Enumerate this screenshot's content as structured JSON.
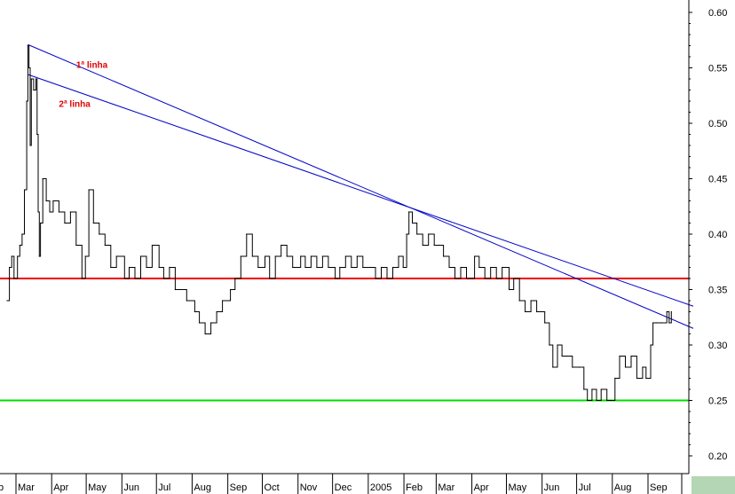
{
  "chart_data": {
    "type": "line",
    "title": "",
    "xlabel": "",
    "ylabel": "",
    "ylim": [
      0.19,
      0.61
    ],
    "y_ticks": [
      "0.20",
      "0.25",
      "0.30",
      "0.35",
      "0.40",
      "0.45",
      "0.50",
      "0.55",
      "0.60"
    ],
    "x_ticks": [
      "Mar",
      "Apr",
      "May",
      "Jun",
      "Jul",
      "Aug",
      "Sep",
      "Oct",
      "Nov",
      "Dec",
      "2005",
      "Feb",
      "Mar",
      "Apr",
      "May",
      "Jun",
      "Jul",
      "Aug",
      "Sep"
    ],
    "x_start_partial_label": "b",
    "y_axis_position": "right",
    "grid": false,
    "series": [
      {
        "color": "#000000",
        "values": [
          [
            "2004-02-20",
            0.34
          ],
          [
            "2004-02-22",
            0.37
          ],
          [
            "2004-02-24",
            0.38
          ],
          [
            "2004-02-26",
            0.36
          ],
          [
            "2004-02-29",
            0.38
          ],
          [
            "2004-03-02",
            0.39
          ],
          [
            "2004-03-04",
            0.4
          ],
          [
            "2004-03-06",
            0.44
          ],
          [
            "2004-03-08",
            0.52
          ],
          [
            "2004-03-09",
            0.57
          ],
          [
            "2004-03-10",
            0.55
          ],
          [
            "2004-03-11",
            0.48
          ],
          [
            "2004-03-12",
            0.54
          ],
          [
            "2004-03-14",
            0.53
          ],
          [
            "2004-03-16",
            0.54
          ],
          [
            "2004-03-17",
            0.49
          ],
          [
            "2004-03-18",
            0.42
          ],
          [
            "2004-03-19",
            0.38
          ],
          [
            "2004-03-20",
            0.41
          ],
          [
            "2004-03-22",
            0.45
          ],
          [
            "2004-03-25",
            0.43
          ],
          [
            "2004-03-28",
            0.42
          ],
          [
            "2004-03-31",
            0.43
          ],
          [
            "2004-04-05",
            0.42
          ],
          [
            "2004-04-10",
            0.41
          ],
          [
            "2004-04-15",
            0.42
          ],
          [
            "2004-04-20",
            0.39
          ],
          [
            "2004-04-25",
            0.36
          ],
          [
            "2004-04-28",
            0.38
          ],
          [
            "2004-05-01",
            0.44
          ],
          [
            "2004-05-05",
            0.41
          ],
          [
            "2004-05-10",
            0.4
          ],
          [
            "2004-05-15",
            0.39
          ],
          [
            "2004-05-20",
            0.37
          ],
          [
            "2004-05-25",
            0.38
          ],
          [
            "2004-06-01",
            0.36
          ],
          [
            "2004-06-05",
            0.37
          ],
          [
            "2004-06-10",
            0.36
          ],
          [
            "2004-06-15",
            0.38
          ],
          [
            "2004-06-20",
            0.37
          ],
          [
            "2004-06-25",
            0.39
          ],
          [
            "2004-07-01",
            0.37
          ],
          [
            "2004-07-05",
            0.36
          ],
          [
            "2004-07-10",
            0.37
          ],
          [
            "2004-07-15",
            0.35
          ],
          [
            "2004-07-20",
            0.35
          ],
          [
            "2004-07-25",
            0.34
          ],
          [
            "2004-08-01",
            0.33
          ],
          [
            "2004-08-05",
            0.32
          ],
          [
            "2004-08-10",
            0.31
          ],
          [
            "2004-08-15",
            0.32
          ],
          [
            "2004-08-20",
            0.33
          ],
          [
            "2004-08-25",
            0.34
          ],
          [
            "2004-09-01",
            0.35
          ],
          [
            "2004-09-05",
            0.36
          ],
          [
            "2004-09-10",
            0.38
          ],
          [
            "2004-09-15",
            0.4
          ],
          [
            "2004-09-20",
            0.38
          ],
          [
            "2004-09-25",
            0.37
          ],
          [
            "2004-10-01",
            0.38
          ],
          [
            "2004-10-05",
            0.36
          ],
          [
            "2004-10-10",
            0.38
          ],
          [
            "2004-10-15",
            0.39
          ],
          [
            "2004-10-20",
            0.38
          ],
          [
            "2004-10-25",
            0.37
          ],
          [
            "2004-11-01",
            0.38
          ],
          [
            "2004-11-05",
            0.37
          ],
          [
            "2004-11-10",
            0.38
          ],
          [
            "2004-11-15",
            0.37
          ],
          [
            "2004-11-20",
            0.38
          ],
          [
            "2004-11-25",
            0.37
          ],
          [
            "2004-12-01",
            0.36
          ],
          [
            "2004-12-05",
            0.37
          ],
          [
            "2004-12-10",
            0.38
          ],
          [
            "2004-12-15",
            0.37
          ],
          [
            "2004-12-20",
            0.38
          ],
          [
            "2004-12-25",
            0.37
          ],
          [
            "2005-01-01",
            0.37
          ],
          [
            "2005-01-05",
            0.36
          ],
          [
            "2005-01-10",
            0.37
          ],
          [
            "2005-01-15",
            0.36
          ],
          [
            "2005-01-20",
            0.37
          ],
          [
            "2005-01-25",
            0.38
          ],
          [
            "2005-01-29",
            0.37
          ],
          [
            "2005-02-01",
            0.4
          ],
          [
            "2005-02-03",
            0.42
          ],
          [
            "2005-02-06",
            0.41
          ],
          [
            "2005-02-10",
            0.4
          ],
          [
            "2005-02-15",
            0.39
          ],
          [
            "2005-02-20",
            0.4
          ],
          [
            "2005-02-25",
            0.39
          ],
          [
            "2005-03-01",
            0.39
          ],
          [
            "2005-03-05",
            0.38
          ],
          [
            "2005-03-10",
            0.37
          ],
          [
            "2005-03-15",
            0.36
          ],
          [
            "2005-03-20",
            0.37
          ],
          [
            "2005-03-25",
            0.36
          ],
          [
            "2005-04-01",
            0.38
          ],
          [
            "2005-04-05",
            0.37
          ],
          [
            "2005-04-10",
            0.36
          ],
          [
            "2005-04-15",
            0.37
          ],
          [
            "2005-04-20",
            0.36
          ],
          [
            "2005-04-25",
            0.37
          ],
          [
            "2005-05-01",
            0.35
          ],
          [
            "2005-05-05",
            0.36
          ],
          [
            "2005-05-10",
            0.34
          ],
          [
            "2005-05-15",
            0.33
          ],
          [
            "2005-05-20",
            0.34
          ],
          [
            "2005-05-25",
            0.33
          ],
          [
            "2005-06-01",
            0.32
          ],
          [
            "2005-06-05",
            0.3
          ],
          [
            "2005-06-08",
            0.28
          ],
          [
            "2005-06-12",
            0.3
          ],
          [
            "2005-06-16",
            0.29
          ],
          [
            "2005-06-20",
            0.29
          ],
          [
            "2005-06-25",
            0.28
          ],
          [
            "2005-07-01",
            0.28
          ],
          [
            "2005-07-05",
            0.26
          ],
          [
            "2005-07-08",
            0.25
          ],
          [
            "2005-07-12",
            0.26
          ],
          [
            "2005-07-16",
            0.25
          ],
          [
            "2005-07-20",
            0.26
          ],
          [
            "2005-07-25",
            0.25
          ],
          [
            "2005-08-01",
            0.27
          ],
          [
            "2005-08-05",
            0.29
          ],
          [
            "2005-08-10",
            0.28
          ],
          [
            "2005-08-15",
            0.29
          ],
          [
            "2005-08-20",
            0.27
          ],
          [
            "2005-08-25",
            0.28
          ],
          [
            "2005-08-28",
            0.27
          ],
          [
            "2005-09-01",
            0.3
          ],
          [
            "2005-09-03",
            0.32
          ],
          [
            "2005-09-06",
            0.32
          ],
          [
            "2005-09-10",
            0.32
          ],
          [
            "2005-09-15",
            0.33
          ],
          [
            "2005-09-17",
            0.32
          ],
          [
            "2005-09-19",
            0.33
          ]
        ]
      }
    ],
    "annotations": [
      {
        "text": "1ª linha",
        "color": "#e00000",
        "near": [
          "2004-04-20",
          0.55
        ]
      },
      {
        "text": "2ª linha",
        "color": "#e00000",
        "near": [
          "2004-04-05",
          0.515
        ]
      }
    ],
    "trend_lines": [
      {
        "label_ref": "1ª linha",
        "color": "#0000c8",
        "start": [
          "2004-03-09",
          0.571
        ],
        "end": [
          "2005-10-08",
          0.315
        ]
      },
      {
        "label_ref": "2ª linha",
        "color": "#0000c8",
        "start": [
          "2004-03-09",
          0.544
        ],
        "end": [
          "2005-10-08",
          0.335
        ]
      }
    ],
    "reference_lines": [
      {
        "orientation": "horizontal",
        "y": 0.36,
        "color": "#ee0000"
      },
      {
        "orientation": "horizontal",
        "y": 0.25,
        "color": "#00dd00"
      }
    ]
  }
}
